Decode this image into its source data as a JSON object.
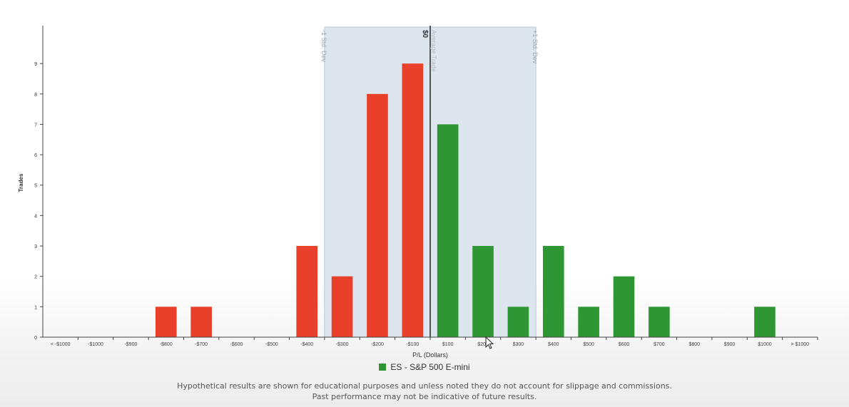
{
  "chart_data": {
    "type": "bar",
    "ylabel": "Trades",
    "xlabel": "P/L (Dollars)",
    "ylim": [
      0,
      10
    ],
    "yticks": [
      0,
      1,
      2,
      3,
      4,
      5,
      6,
      7,
      8,
      9
    ],
    "categories": [
      "< -$1000",
      "-$1000",
      "-$900",
      "-$800",
      "-$700",
      "-$600",
      "-$500",
      "-$400",
      "-$300",
      "-$200",
      "-$100",
      "$100",
      "$200",
      "$300",
      "$400",
      "$500",
      "$600",
      "$700",
      "$800",
      "$900",
      "$1000",
      "> $1000"
    ],
    "series": [
      {
        "name": "ES - S&P 500 E-mini",
        "values": [
          0,
          0,
          0,
          1,
          1,
          0,
          0,
          3,
          2,
          8,
          9,
          7,
          3,
          1,
          3,
          1,
          2,
          1,
          0,
          0,
          1,
          0
        ]
      }
    ],
    "colors": {
      "loss": "#e8402a",
      "gain": "#2e9632",
      "band": "#dde6ef"
    },
    "band": {
      "from_label": "-1 Std. Dev",
      "to_label": "+1 Std. Dev",
      "from_x": -350,
      "to_x": 350
    },
    "zero_line": {
      "label": "$0",
      "x": 0
    },
    "average_label": "Average Trade",
    "grid": false
  },
  "legend_label": "ES - S&P 500 E-mini",
  "legend_color": "#2e9632",
  "disclaimer_line1": "Hypothetical results are shown for educational purposes and unless noted they do not account for slippage and commissions.",
  "disclaimer_line2": "Past performance may not be indicative of future results."
}
